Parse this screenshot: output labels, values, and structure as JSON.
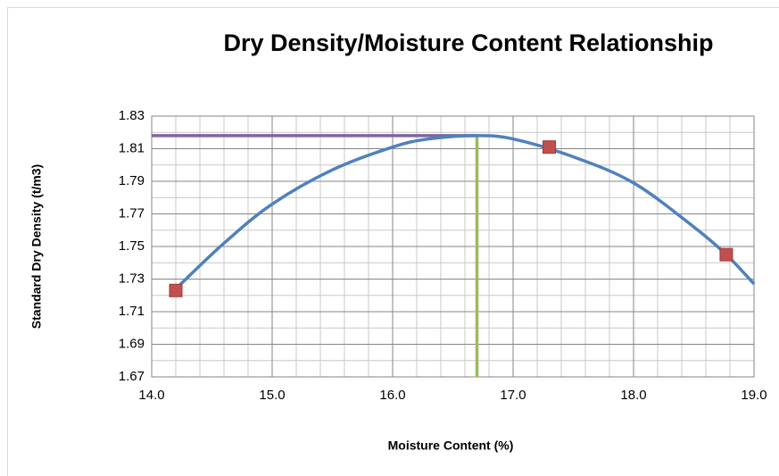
{
  "chart_data": {
    "type": "scatter",
    "title": "Dry Density/Moisture Content Relationship",
    "x_label": "Moisture Content (%)",
    "y_label": "Standard Dry Density (t/m3)",
    "xlim": [
      14.0,
      19.0
    ],
    "ylim": [
      1.67,
      1.83
    ],
    "xticks": [
      {
        "value": 14,
        "label": "14.0"
      },
      {
        "value": 15,
        "label": "15.0"
      },
      {
        "value": 16,
        "label": "16.0"
      },
      {
        "value": 17,
        "label": "17.0"
      },
      {
        "value": 18,
        "label": "18.0"
      },
      {
        "value": 19,
        "label": "19.0"
      }
    ],
    "yticks": [
      1.67,
      1.69,
      1.71,
      1.73,
      1.75,
      1.77,
      1.79,
      1.81,
      1.83
    ],
    "x_minor_ticks": [
      14.2,
      14.4,
      14.6,
      14.8,
      15.2,
      15.4,
      15.6,
      15.8,
      16.2,
      16.4,
      16.6,
      16.8,
      17.2,
      17.4,
      17.6,
      17.8,
      18.2,
      18.4,
      18.6,
      18.8
    ],
    "y_minor_ticks": [
      1.68,
      1.7,
      1.72,
      1.74,
      1.76,
      1.78,
      1.8,
      1.82
    ],
    "grid": true,
    "series": [
      {
        "kind": "points",
        "color": "#c0504d",
        "x": [
          14.2,
          17.3,
          18.77
        ],
        "values": [
          1.723,
          1.811,
          1.745
        ]
      },
      {
        "kind": "curve",
        "color": "#4f81bd",
        "x": [
          14.2,
          14.6,
          15.0,
          15.5,
          16.0,
          16.3,
          16.7,
          17.0,
          17.5,
          18.0,
          18.5,
          18.77,
          19.0
        ],
        "values": [
          1.724,
          1.752,
          1.776,
          1.797,
          1.811,
          1.816,
          1.818,
          1.816,
          1.805,
          1.789,
          1.762,
          1.745,
          1.727
        ]
      },
      {
        "kind": "line",
        "color": "#8064a2",
        "x": [
          14.0,
          16.7
        ],
        "values": [
          1.818,
          1.818
        ]
      },
      {
        "kind": "line",
        "color": "#9bbb59",
        "x": [
          16.7,
          16.7
        ],
        "values": [
          1.67,
          1.818
        ]
      }
    ]
  }
}
